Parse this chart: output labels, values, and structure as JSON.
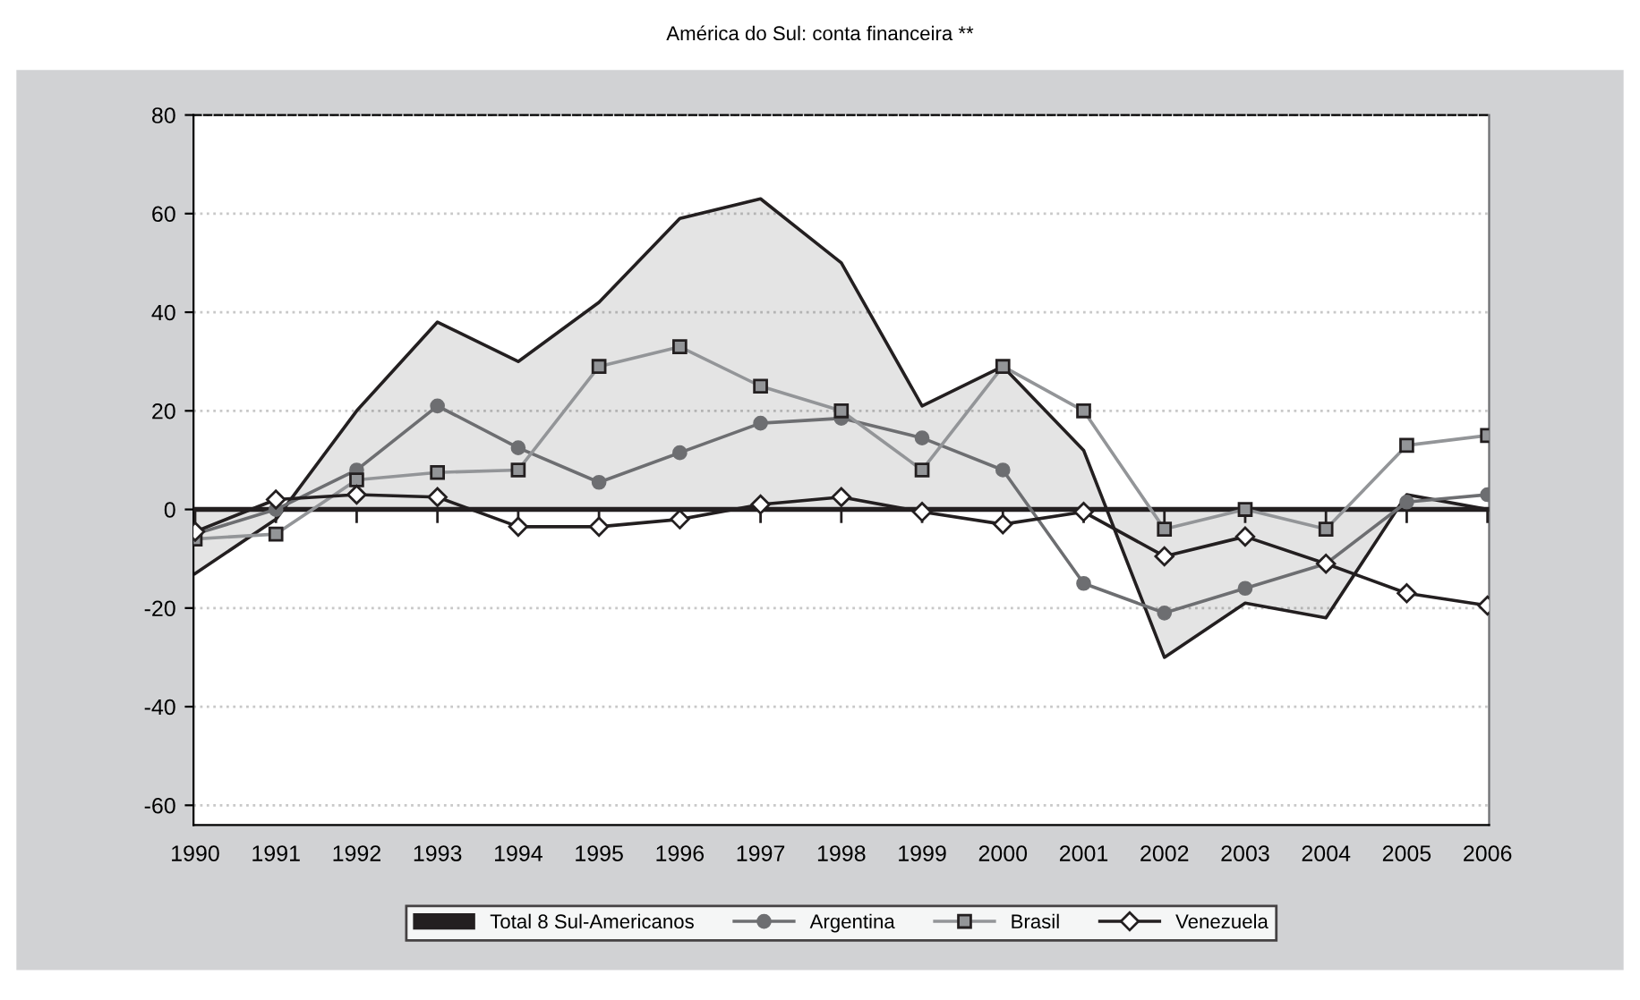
{
  "chart_data": {
    "type": "line",
    "title": "América do Sul: conta financeira **",
    "categories": [
      "1990",
      "1991",
      "1992",
      "1993",
      "1994",
      "1995",
      "1996",
      "1997",
      "1998",
      "1999",
      "2000",
      "2001",
      "2002",
      "2003",
      "2004",
      "2005",
      "2006"
    ],
    "series": [
      {
        "name": "Total 8 Sul-Americanos",
        "type": "area",
        "color": "#231f20",
        "marker": "none",
        "values": [
          -13,
          -2,
          20,
          38,
          30,
          42,
          59,
          63,
          50,
          21,
          29,
          12,
          -30,
          -19,
          -22,
          3,
          0
        ]
      },
      {
        "name": "Argentina",
        "color": "#6d6e71",
        "marker": "circle",
        "values": [
          -5,
          0,
          8,
          21,
          12.5,
          5.5,
          11.5,
          17.5,
          18.5,
          14.5,
          8,
          -15,
          -21,
          -16,
          -11,
          1.5,
          3
        ]
      },
      {
        "name": "Brasil",
        "color": "#939598",
        "marker": "square",
        "values": [
          -6,
          -5,
          6,
          7.5,
          8,
          29,
          33,
          25,
          20,
          8,
          29,
          20,
          -4,
          0,
          -4,
          13,
          15
        ]
      },
      {
        "name": "Venezuela",
        "color": "#231f20",
        "marker": "diamond",
        "values": [
          -4.5,
          2,
          3,
          2.5,
          -3.5,
          -3.5,
          -2,
          1,
          2.5,
          -0.5,
          -3,
          -0.5,
          -9.5,
          -5.5,
          -11,
          -17,
          -19.5
        ]
      }
    ],
    "ylim": [
      -64,
      80
    ],
    "yticks": [
      -60,
      -40,
      -20,
      0,
      20,
      40,
      60,
      80
    ],
    "ref_lines": [
      {
        "axis": "y",
        "value": 0,
        "color": "#231f20"
      }
    ],
    "grid": "y",
    "legend": "bottom",
    "line_style": "solid"
  }
}
